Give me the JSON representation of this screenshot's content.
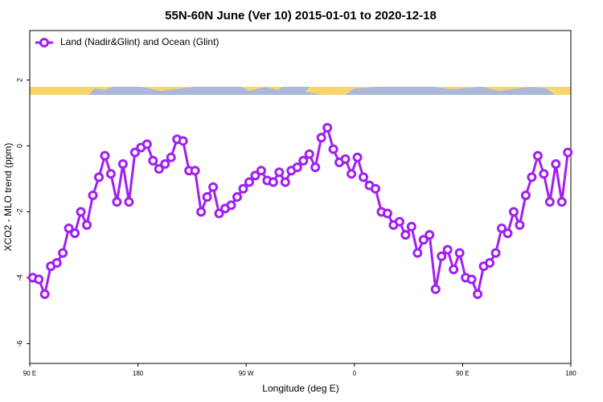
{
  "chart_data": {
    "type": "line",
    "title": "55N-60N June (Ver 10)   2015-01-01 to 2020-12-18",
    "x_label": "Longitude (deg E)",
    "y_label": "XCO2 - MLO trend (ppm)",
    "xlim": [
      90,
      540
    ],
    "ylim": [
      -6.6,
      3.5
    ],
    "xticks": [
      {
        "value": 90,
        "label": "90 E"
      },
      {
        "value": 180,
        "label": "180"
      },
      {
        "value": 270,
        "label": "90 W"
      },
      {
        "value": 360,
        "label": "0"
      },
      {
        "value": 450,
        "label": "90 E"
      },
      {
        "value": 540,
        "label": "180"
      }
    ],
    "yticks": [
      2,
      0,
      -2,
      -4,
      -6
    ],
    "legend_position": "top-left",
    "x": [
      92.5,
      97.5,
      102.5,
      107.5,
      112.5,
      117.5,
      122.5,
      127.5,
      132.5,
      137.5,
      142.5,
      147.5,
      152.5,
      157.5,
      162.5,
      167.5,
      172.5,
      177.5,
      182.5,
      187.5,
      192.5,
      197.5,
      202.5,
      207.5,
      212.5,
      217.5,
      222.5,
      227.5,
      232.5,
      237.5,
      242.5,
      247.5,
      252.5,
      257.5,
      262.5,
      267.5,
      272.5,
      277.5,
      282.5,
      287.5,
      292.5,
      297.5,
      302.5,
      307.5,
      312.5,
      317.5,
      322.5,
      327.5,
      332.5,
      337.5,
      342.5,
      347.5,
      352.5,
      357.5,
      362.5,
      367.5,
      372.5,
      377.5,
      382.5,
      387.5,
      392.5,
      397.5,
      402.5,
      407.5,
      412.5,
      417.5,
      422.5,
      427.5,
      432.5,
      437.5,
      442.5,
      447.5,
      452.5,
      457.5,
      462.5,
      467.5,
      472.5,
      477.5,
      482.5,
      487.5,
      492.5,
      497.5,
      502.5,
      507.5,
      512.5,
      517.5,
      522.5,
      527.5,
      532.5,
      537.5
    ],
    "series": [
      {
        "name": "Land (Nadir&Glint) and Ocean (Glint)",
        "color": "#a020f0",
        "values": [
          -4.0,
          -4.05,
          -4.5,
          -3.65,
          -3.55,
          -3.25,
          -2.5,
          -2.65,
          -2.0,
          -2.4,
          -1.5,
          -0.95,
          -0.3,
          -0.85,
          -1.7,
          -0.55,
          -1.7,
          -0.2,
          -0.05,
          0.05,
          -0.45,
          -0.7,
          -0.55,
          -0.35,
          0.2,
          0.15,
          -0.75,
          -0.75,
          -2.0,
          -1.55,
          -1.25,
          -2.05,
          -1.9,
          -1.8,
          -1.55,
          -1.3,
          -1.1,
          -0.9,
          -0.75,
          -1.05,
          -1.1,
          -0.8,
          -1.1,
          -0.75,
          -0.65,
          -0.45,
          -0.25,
          -0.65,
          0.25,
          0.55,
          -0.1,
          -0.5,
          -0.4,
          -0.85,
          -0.35,
          -0.95,
          -1.2,
          -1.3,
          -2.0,
          -2.05,
          -2.4,
          -2.3,
          -2.7,
          -2.45,
          -3.25,
          -2.85,
          -2.7,
          -4.35,
          -3.35,
          -3.15,
          -3.75,
          -3.25,
          -4.0,
          -4.05,
          -4.5,
          -3.65,
          -3.55,
          -3.25,
          -2.5,
          -2.65,
          -2.0,
          -2.4,
          -1.5,
          -0.95,
          -0.3,
          -0.85,
          -1.7,
          -0.55,
          -1.7,
          -0.2
        ]
      }
    ]
  }
}
